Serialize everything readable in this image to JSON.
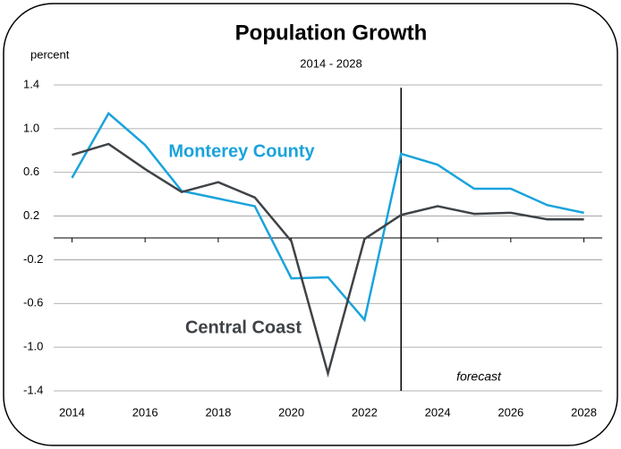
{
  "chart_data": {
    "type": "line",
    "title": "Population Growth",
    "subtitle": "2014 - 2028",
    "y_label": "percent",
    "annotations": [
      "Monterey County",
      "Central Coast",
      "forecast"
    ],
    "forecast_start": 2023,
    "x": [
      2014,
      2015,
      2016,
      2017,
      2018,
      2019,
      2020,
      2021,
      2022,
      2023,
      2024,
      2025,
      2026,
      2027,
      2028
    ],
    "series": [
      {
        "name": "Monterey County",
        "color": "#1aa3dc",
        "values": [
          0.55,
          1.14,
          0.85,
          0.43,
          0.36,
          0.29,
          -0.37,
          -0.36,
          -0.75,
          0.77,
          0.67,
          0.45,
          0.45,
          0.3,
          0.23
        ]
      },
      {
        "name": "Central Coast",
        "color": "#3f4347",
        "values": [
          0.76,
          0.86,
          0.63,
          0.42,
          0.51,
          0.37,
          -0.03,
          -1.24,
          -0.01,
          0.21,
          0.29,
          0.22,
          0.23,
          0.17,
          0.17
        ]
      }
    ],
    "xlim": [
      2013.5,
      2028.5
    ],
    "xticks": [
      2014,
      2016,
      2018,
      2020,
      2022,
      2024,
      2026,
      2028
    ],
    "ylim": [
      -1.4,
      1.4
    ],
    "yticks": [
      -1.4,
      {
        "value": -1.0,
        "label": "-1.0"
      },
      -0.6,
      -0.2,
      0.2,
      0.6,
      {
        "value": 1.0,
        "label": "1.0"
      },
      1.4
    ],
    "grid": true
  }
}
